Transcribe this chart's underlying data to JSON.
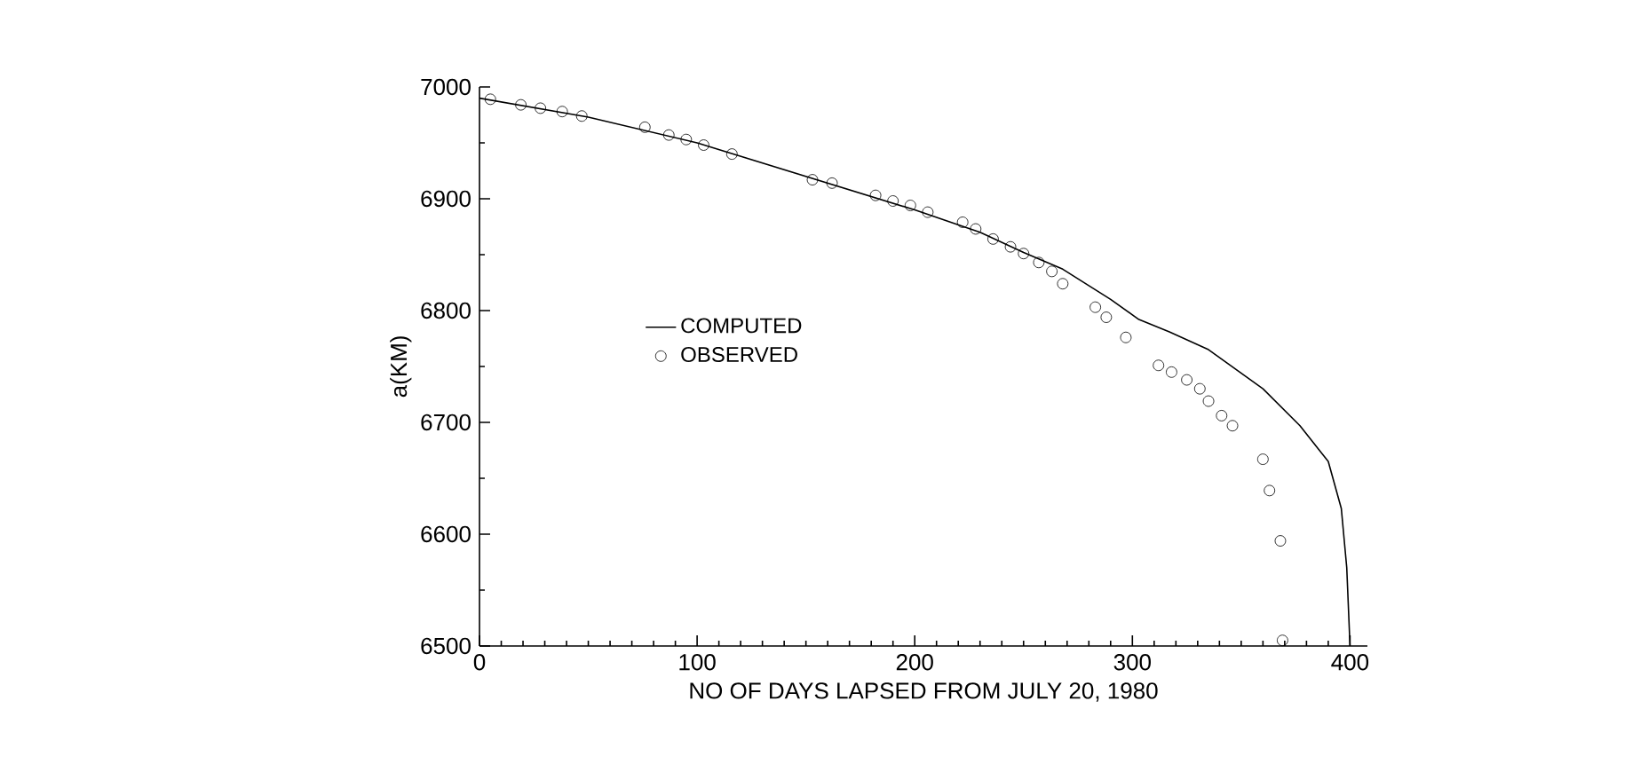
{
  "chart_data": {
    "type": "line",
    "xlabel": "NO OF DAYS LAPSED FROM JULY 20, 1980",
    "ylabel": "a(KM)",
    "xlim": [
      0,
      408
    ],
    "ylim": [
      6500,
      7000
    ],
    "xticks": [
      0,
      100,
      200,
      300,
      400
    ],
    "yticks": [
      6500,
      6600,
      6700,
      6800,
      6900,
      7000
    ],
    "grid": false,
    "legend": "left",
    "series": [
      {
        "name": "COMPUTED",
        "type": "line",
        "color": "#000000",
        "marker": "none",
        "line_style": "solid",
        "x": [
          0,
          50,
          100,
          150,
          200,
          230,
          250,
          268,
          290,
          303,
          317,
          335,
          360,
          377,
          390,
          396,
          398.5,
          400
        ],
        "values": [
          6990,
          6973,
          6950,
          6920,
          6890,
          6870,
          6852,
          6837,
          6810,
          6792,
          6781,
          6765,
          6730,
          6697,
          6665,
          6623,
          6570,
          6500
        ]
      },
      {
        "name": "OBSERVED",
        "type": "scatter",
        "color": "#000000",
        "marker": "circle",
        "x": [
          5,
          19,
          28,
          38,
          47,
          76,
          87,
          95,
          103,
          116,
          153,
          162,
          182,
          190,
          198,
          206,
          222,
          228,
          236,
          244,
          250,
          257,
          263,
          268,
          283,
          288,
          297,
          312,
          318,
          325,
          331,
          335,
          341,
          346,
          360,
          363,
          368,
          369
        ],
        "values": [
          6989,
          6984,
          6981,
          6978,
          6974,
          6964,
          6957,
          6953,
          6948,
          6940,
          6917,
          6914,
          6903,
          6898,
          6894,
          6888,
          6879,
          6873,
          6864,
          6857,
          6851,
          6843,
          6835,
          6824,
          6803,
          6794,
          6776,
          6751,
          6745,
          6738,
          6730,
          6719,
          6706,
          6697,
          6667,
          6639,
          6594,
          6505
        ]
      }
    ]
  }
}
